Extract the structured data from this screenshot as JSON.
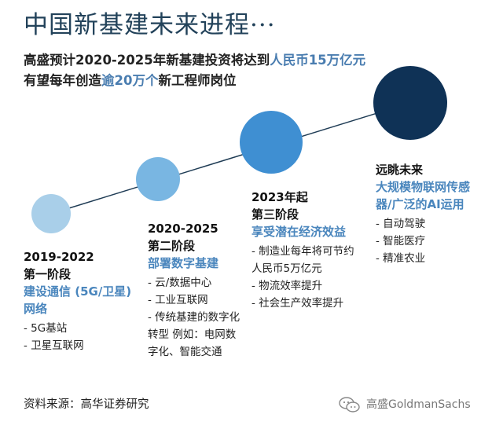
{
  "title": "中国新基建未来进程···",
  "subtitle": {
    "line1_prefix": "高盛预计2020-2025年新基建投资将达到",
    "line1_highlight": "人民币15万亿元",
    "line2_prefix": "有望每年创造",
    "line2_highlight": "逾20万个",
    "line2_suffix": "新工程师岗位"
  },
  "stages": [
    {
      "years": "2019-2022",
      "phase": "第一阶段",
      "theme_lines": [
        "建设通信 (5G/卫星)",
        "网络"
      ],
      "bullets": [
        "- 5G基站",
        "- 卫星互联网"
      ]
    },
    {
      "years": "2020-2025",
      "phase": "第二阶段",
      "theme_lines": [
        "部署数字基建"
      ],
      "bullets": [
        "- 云/数据中心",
        "- 工业互联网",
        "- 传统基建的数字化",
        "转型 例如：电网数",
        "字化、智能交通"
      ]
    },
    {
      "years": "2023年起",
      "phase": "第三阶段",
      "theme_lines": [
        "享受潜在经济效益"
      ],
      "bullets": [
        "- 制造业每年将可节约",
        "人民币5万亿元",
        "- 物流效率提升",
        "- 社会生产效率提升"
      ]
    },
    {
      "years": "",
      "phase": "远眺未来",
      "theme_lines": [
        "大规模物联网传感",
        "器/广泛的AI运用"
      ],
      "bullets": [
        "- 自动驾驶",
        "- 智能医疗",
        "- 精准农业"
      ]
    }
  ],
  "circle_colors": [
    "#a9cfe9",
    "#79b6e2",
    "#3f8fd2",
    "#0f3256"
  ],
  "source": "资料来源：高华证券研究",
  "watermark": "高盛GoldmanSachs",
  "watermark_icon": "wechat-icon"
}
